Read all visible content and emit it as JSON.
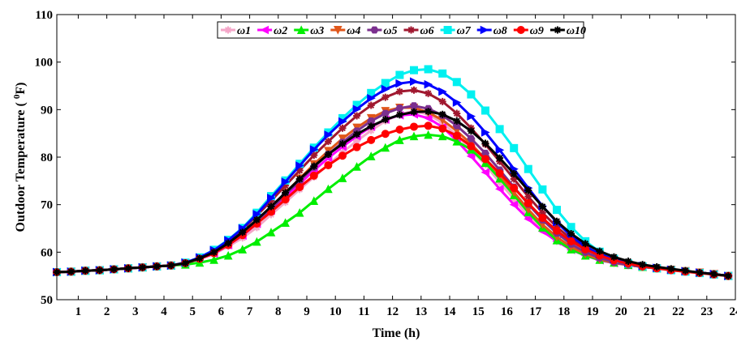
{
  "chart_data": {
    "type": "line",
    "xlabel": "Time (h)",
    "ylabel": "Outdoor Temperature ( ",
    "ylabel_sup": "0",
    "ylabel_unit": "F)",
    "xlim": [
      0.25,
      24
    ],
    "ylim": [
      50,
      110
    ],
    "xticks": [
      1,
      2,
      3,
      4,
      5,
      6,
      7,
      8,
      9,
      10,
      11,
      12,
      13,
      14,
      15,
      16,
      17,
      18,
      19,
      20,
      21,
      22,
      23,
      24
    ],
    "xtick_labels": [
      "1",
      "2",
      "3",
      "4",
      "5",
      "6",
      "7",
      "8",
      "9",
      "10",
      "11",
      "12",
      "13",
      "14",
      "15",
      "16",
      "17",
      "18",
      "19",
      "20",
      "21",
      "22",
      "23",
      "24"
    ],
    "yticks": [
      50,
      60,
      70,
      80,
      90,
      100,
      110
    ],
    "ytick_labels": [
      "50",
      "60",
      "70",
      "80",
      "90",
      "100",
      "110"
    ],
    "grid": false,
    "legend_position": "top-center",
    "x": [
      0.25,
      0.75,
      1.25,
      1.75,
      2.25,
      2.75,
      3.25,
      3.75,
      4.25,
      4.75,
      5.25,
      5.75,
      6.25,
      6.75,
      7.25,
      7.75,
      8.25,
      8.75,
      9.25,
      9.75,
      10.25,
      10.75,
      11.25,
      11.75,
      12.25,
      12.75,
      13.25,
      13.75,
      14.25,
      14.75,
      15.25,
      15.75,
      16.25,
      16.75,
      17.25,
      17.75,
      18.25,
      18.75,
      19.25,
      19.75,
      20.25,
      20.75,
      21.25,
      21.75,
      22.25,
      22.75,
      23.25,
      23.75
    ],
    "series": [
      {
        "name": "ω1",
        "color": "#f4a6c8",
        "marker": "star",
        "values": [
          55.8,
          55.9,
          56.1,
          56.2,
          56.4,
          56.6,
          56.8,
          57.0,
          57.2,
          57.7,
          58.6,
          59.6,
          61.2,
          63.0,
          65.2,
          67.9,
          70.5,
          73.2,
          75.8,
          78.4,
          81.0,
          83.4,
          85.6,
          87.6,
          89.0,
          89.7,
          89.0,
          87.2,
          84.6,
          81.5,
          78.4,
          74.7,
          71.2,
          67.6,
          64.7,
          62.3,
          60.5,
          59.3,
          58.3,
          57.7,
          57.3,
          56.9,
          56.6,
          56.3,
          56.0,
          55.7,
          55.4,
          55.0
        ]
      },
      {
        "name": "ω2",
        "color": "#ff00ff",
        "marker": "triangle-left",
        "values": [
          55.8,
          55.9,
          56.1,
          56.2,
          56.4,
          56.6,
          56.8,
          57.0,
          57.2,
          57.7,
          58.6,
          59.7,
          61.5,
          63.5,
          66.0,
          68.8,
          71.6,
          74.4,
          77.2,
          79.8,
          82.2,
          84.4,
          86.4,
          87.9,
          88.8,
          89.0,
          88.2,
          86.3,
          83.5,
          80.2,
          76.8,
          73.3,
          70.0,
          67.0,
          64.4,
          62.3,
          60.5,
          59.3,
          58.3,
          57.7,
          57.3,
          56.9,
          56.6,
          56.3,
          56.0,
          55.7,
          55.4,
          55.0
        ]
      },
      {
        "name": "ω3",
        "color": "#00ee00",
        "marker": "triangle-up",
        "values": [
          55.8,
          55.9,
          56.1,
          56.2,
          56.4,
          56.6,
          56.8,
          57.0,
          57.2,
          57.4,
          57.8,
          58.4,
          59.3,
          60.6,
          62.2,
          64.2,
          66.2,
          68.3,
          70.8,
          73.3,
          75.6,
          78.0,
          80.2,
          82.0,
          83.6,
          84.4,
          84.7,
          84.4,
          83.3,
          81.6,
          78.8,
          75.5,
          72.0,
          68.4,
          65.2,
          62.5,
          60.6,
          59.3,
          58.4,
          57.8,
          57.3,
          56.9,
          56.6,
          56.3,
          56.0,
          55.7,
          55.4,
          55.0
        ]
      },
      {
        "name": "ω4",
        "color": "#e0561a",
        "marker": "triangle-down",
        "values": [
          55.8,
          55.9,
          56.1,
          56.2,
          56.4,
          56.6,
          56.8,
          57.0,
          57.2,
          57.7,
          58.6,
          59.8,
          61.7,
          63.9,
          66.5,
          69.4,
          72.5,
          75.5,
          78.5,
          81.3,
          83.9,
          86.2,
          88.2,
          89.7,
          90.4,
          90.4,
          89.4,
          87.8,
          85.5,
          82.8,
          79.6,
          76.2,
          72.6,
          69.0,
          65.8,
          63.2,
          61.1,
          59.6,
          58.5,
          57.8,
          57.3,
          56.9,
          56.6,
          56.3,
          56.0,
          55.7,
          55.4,
          55.0
        ]
      },
      {
        "name": "ω5",
        "color": "#7b2f8e",
        "marker": "hexagon",
        "values": [
          55.8,
          55.9,
          56.1,
          56.2,
          56.4,
          56.6,
          56.8,
          57.0,
          57.2,
          57.7,
          58.6,
          59.8,
          61.6,
          63.7,
          66.2,
          69.1,
          72.1,
          75.0,
          77.9,
          80.6,
          83.1,
          85.5,
          87.6,
          89.2,
          90.3,
          90.8,
          90.2,
          88.8,
          86.6,
          83.9,
          80.8,
          77.3,
          73.7,
          70.1,
          66.8,
          64.0,
          61.7,
          60.0,
          58.8,
          57.9,
          57.3,
          56.9,
          56.6,
          56.3,
          56.0,
          55.7,
          55.4,
          55.0
        ]
      },
      {
        "name": "ω6",
        "color": "#a0182f",
        "marker": "star",
        "values": [
          55.8,
          55.9,
          56.1,
          56.2,
          56.4,
          56.6,
          56.8,
          57.0,
          57.2,
          57.8,
          58.8,
          60.2,
          62.2,
          64.8,
          67.7,
          70.8,
          74.0,
          77.2,
          80.4,
          83.3,
          86.1,
          88.7,
          90.9,
          92.6,
          93.8,
          94.1,
          93.4,
          91.7,
          89.2,
          86.1,
          82.7,
          79.1,
          75.4,
          71.7,
          68.3,
          65.3,
          62.8,
          60.9,
          59.5,
          58.5,
          57.8,
          57.2,
          56.7,
          56.3,
          56.0,
          55.7,
          55.4,
          55.0
        ]
      },
      {
        "name": "ω7",
        "color": "#00f0f0",
        "marker": "square",
        "values": [
          55.8,
          55.9,
          56.1,
          56.2,
          56.4,
          56.6,
          56.8,
          57.0,
          57.2,
          57.8,
          58.9,
          60.5,
          62.6,
          65.1,
          68.3,
          71.8,
          75.1,
          78.6,
          82.0,
          85.2,
          88.2,
          91.0,
          93.5,
          95.6,
          97.3,
          98.3,
          98.5,
          97.6,
          95.8,
          93.2,
          89.8,
          85.9,
          81.9,
          77.5,
          73.2,
          68.9,
          65.3,
          62.3,
          60.1,
          58.6,
          57.6,
          57.0,
          56.6,
          56.2,
          55.9,
          55.6,
          55.3,
          55.0
        ]
      },
      {
        "name": "ω8",
        "color": "#0000ff",
        "marker": "triangle-right",
        "values": [
          55.8,
          55.9,
          56.1,
          56.2,
          56.4,
          56.6,
          56.8,
          57.0,
          57.2,
          57.8,
          58.9,
          60.4,
          62.5,
          65.0,
          68.0,
          71.4,
          74.8,
          78.2,
          81.6,
          84.7,
          87.5,
          90.1,
          92.4,
          94.3,
          95.5,
          95.9,
          95.3,
          93.8,
          91.5,
          88.6,
          85.2,
          81.5,
          77.5,
          73.5,
          69.7,
          66.3,
          63.4,
          61.2,
          59.6,
          58.5,
          57.7,
          57.1,
          56.7,
          56.3,
          56.0,
          55.7,
          55.4,
          55.0
        ]
      },
      {
        "name": "ω9",
        "color": "#ff0000",
        "marker": "circle",
        "values": [
          55.8,
          55.9,
          56.1,
          56.2,
          56.4,
          56.6,
          56.8,
          57.0,
          57.2,
          57.7,
          58.6,
          59.8,
          61.5,
          63.6,
          66.0,
          68.5,
          71.1,
          73.7,
          76.1,
          78.3,
          80.3,
          82.1,
          83.6,
          84.9,
          85.8,
          86.4,
          86.6,
          86.0,
          84.5,
          82.3,
          79.6,
          76.6,
          73.5,
          70.3,
          67.2,
          64.5,
          62.3,
          60.6,
          59.3,
          58.3,
          57.6,
          57.0,
          56.6,
          56.2,
          55.9,
          55.6,
          55.3,
          55.0
        ]
      },
      {
        "name": "ω10",
        "color": "#000000",
        "marker": "star",
        "values": [
          55.8,
          55.9,
          56.1,
          56.2,
          56.4,
          56.6,
          56.8,
          57.0,
          57.2,
          57.7,
          58.7,
          60.0,
          61.9,
          64.2,
          66.8,
          69.6,
          72.5,
          75.4,
          78.1,
          80.6,
          82.8,
          84.8,
          86.5,
          87.9,
          88.9,
          89.5,
          89.6,
          89.0,
          87.6,
          85.5,
          82.9,
          79.8,
          76.5,
          73.0,
          69.6,
          66.5,
          63.9,
          61.8,
          60.2,
          59.0,
          58.1,
          57.4,
          56.9,
          56.5,
          56.1,
          55.7,
          55.4,
          55.0
        ]
      }
    ]
  }
}
